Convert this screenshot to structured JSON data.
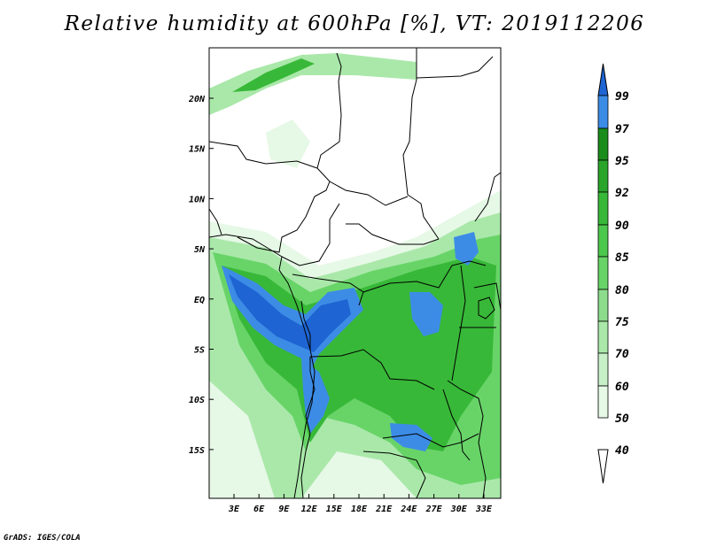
{
  "title": "Relative humidity at 600hPa [%], VT: 2019112206",
  "footer": "GrADS: IGES/COLA",
  "map": {
    "lon_labels": [
      "3E",
      "6E",
      "9E",
      "12E",
      "15E",
      "18E",
      "21E",
      "24E",
      "27E",
      "30E",
      "33E"
    ],
    "lat_labels": [
      "20N",
      "15N",
      "10N",
      "5N",
      "EQ",
      "5S",
      "10S",
      "15S"
    ]
  },
  "colorbar": {
    "labels": [
      "99",
      "97",
      "95",
      "92",
      "90",
      "85",
      "80",
      "75",
      "70",
      "60",
      "50",
      "40"
    ],
    "colors": [
      "#1e64d2",
      "#3c8ce6",
      "#1a8c1a",
      "#2aa52a",
      "#38b838",
      "#4cc84c",
      "#68d468",
      "#8cdc8c",
      "#aae8aa",
      "#c8f0c8",
      "#e6f8e6"
    ]
  }
}
